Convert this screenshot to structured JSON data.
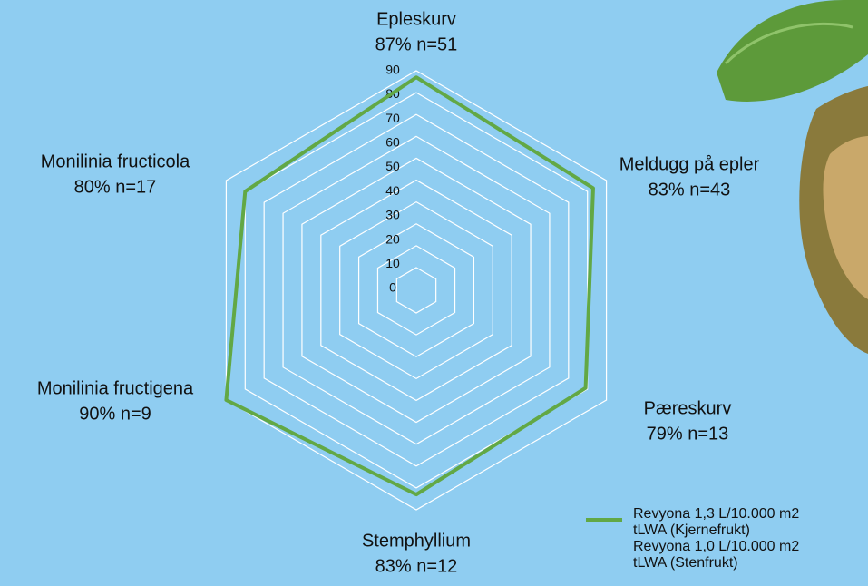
{
  "chart_data": {
    "type": "radar",
    "categories": [
      "Epleskurv",
      "Meldugg på epler",
      "Pæreskurv",
      "Stemphyllium",
      "Monilinia fructigena",
      "Monilinia fructicola"
    ],
    "series": [
      {
        "name": "Revyona 1,3 L/10.000 m2\ntLWA (Kjernefrukt)\nRevyona 1,0 L/10.000 m2\ntLWA (Stenfrukt)",
        "color": "#62a845",
        "values": [
          87,
          83,
          79,
          83,
          90,
          80
        ],
        "value_labels": [
          "87% n=51",
          "83% n=43",
          "79% n=13",
          "83% n=12",
          "90% n=9",
          "80% n=17"
        ]
      }
    ],
    "rlim": [
      0,
      90
    ],
    "rticks": [
      0,
      10,
      20,
      30,
      40,
      50,
      60,
      70,
      80,
      90
    ],
    "grid": true
  }
}
